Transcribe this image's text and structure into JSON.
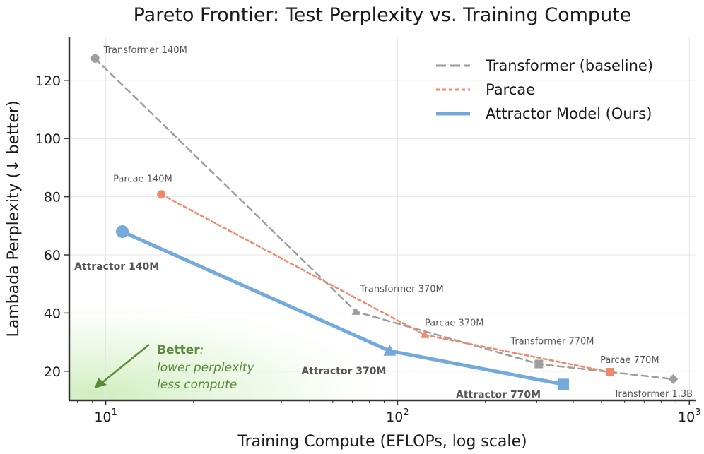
{
  "chart_data": {
    "type": "line",
    "title": "Pareto Frontier: Test Perplexity vs. Training Compute",
    "xlabel": "Training Compute  (EFLOPs, log scale)",
    "ylabel": "Lambada Perplexity  (↓ better)",
    "x_scale": "log",
    "xlim": [
      7.5,
      1050
    ],
    "ylim": [
      10,
      135
    ],
    "x_ticks": [
      10,
      100,
      1000
    ],
    "x_tick_labels": [
      "10",
      "10",
      "10"
    ],
    "x_tick_exponents": [
      "1",
      "2",
      "3"
    ],
    "y_ticks": [
      20,
      40,
      60,
      80,
      100,
      120
    ],
    "y_tick_labels": [
      "20",
      "40",
      "60",
      "80",
      "100",
      "120"
    ],
    "grid": true,
    "legend_position": "top-right",
    "series": [
      {
        "name": "Transformer (baseline)",
        "color": "#9e9e9e",
        "line_style": "dashed",
        "points": [
          {
            "x": 9.2,
            "y": 127.5,
            "marker": "circle",
            "label": "Transformer 140M"
          },
          {
            "x": 72,
            "y": 40.5,
            "marker": "triangle",
            "label": "Transformer 370M"
          },
          {
            "x": 305,
            "y": 22.5,
            "marker": "square",
            "label": "Transformer 770M"
          },
          {
            "x": 880,
            "y": 17.3,
            "marker": "diamond",
            "label": "Transformer 1.3B"
          }
        ]
      },
      {
        "name": "Parcae",
        "color": "#f0896a",
        "line_style": "dotted",
        "points": [
          {
            "x": 15.5,
            "y": 80.8,
            "marker": "circle",
            "label": "Parcae 140M"
          },
          {
            "x": 124,
            "y": 32.5,
            "marker": "triangle",
            "label": "Parcae 370M"
          },
          {
            "x": 535,
            "y": 19.7,
            "marker": "square",
            "label": "Parcae 770M"
          }
        ]
      },
      {
        "name": "Attractor Model (Ours)",
        "color": "#74a9dc",
        "line_style": "solid",
        "points": [
          {
            "x": 11.4,
            "y": 68,
            "marker": "circle",
            "label": "Attractor 140M"
          },
          {
            "x": 94,
            "y": 27,
            "marker": "triangle",
            "label": "Attractor 370M"
          },
          {
            "x": 370,
            "y": 15.5,
            "marker": "square",
            "label": "Attractor 770M"
          }
        ]
      }
    ],
    "annotation": {
      "title": "Better",
      "title_suffix": ":",
      "line1": "lower perplexity",
      "line2": "less compute"
    }
  }
}
